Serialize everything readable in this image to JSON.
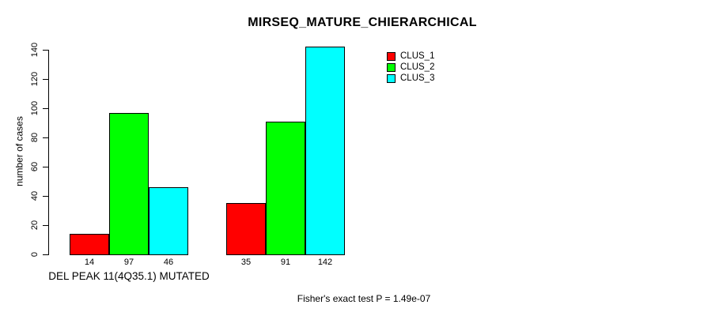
{
  "chart_data": {
    "type": "bar",
    "grouped": true,
    "title": "MIRSEQ_MATURE_CHIERARCHICAL",
    "ylabel": "number of cases",
    "ylim": [
      0,
      140
    ],
    "yticks": [
      0,
      20,
      40,
      60,
      80,
      100,
      120,
      140
    ],
    "categories": [
      "DEL PEAK 11(4Q35.1) MUTATED",
      ""
    ],
    "series": [
      {
        "name": "CLUS_1",
        "color": "#ff0000",
        "values": [
          14,
          35
        ]
      },
      {
        "name": "CLUS_2",
        "color": "#00ff00",
        "values": [
          97,
          91
        ]
      },
      {
        "name": "CLUS_3",
        "color": "#00ffff",
        "values": [
          46,
          142
        ]
      }
    ],
    "bar_value_labels_shown": true,
    "legend_position": "top-right",
    "grid": false,
    "annotation": "Fisher's exact test P = 1.49e-07"
  }
}
